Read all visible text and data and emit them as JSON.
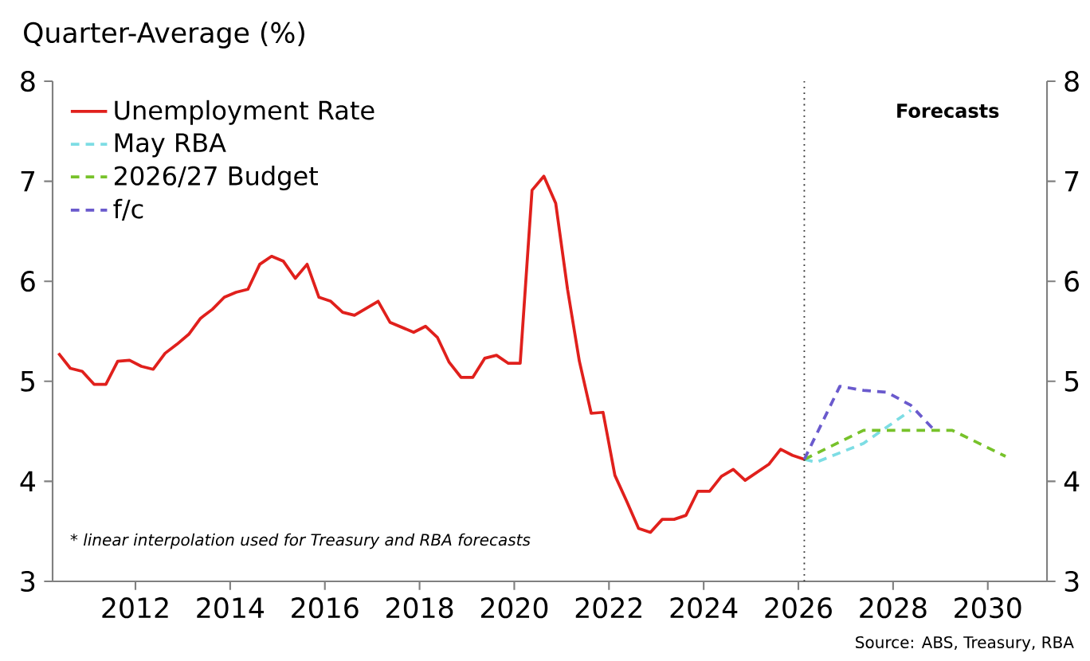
{
  "chart_data": {
    "type": "line",
    "subtitle": "Quarter-Average (%)",
    "xlim": [
      2010.25,
      2031.25
    ],
    "xticks": [
      2012,
      2014,
      2016,
      2018,
      2020,
      2022,
      2024,
      2026,
      2028,
      2030
    ],
    "ylim": [
      3,
      8
    ],
    "yticks": [
      3,
      4,
      5,
      6,
      7,
      8
    ],
    "y2lim": [
      3,
      8
    ],
    "y2ticks": [
      3,
      4,
      5,
      6,
      7,
      8
    ],
    "legend": "top left",
    "ref_lines": [
      {
        "axis": "x",
        "value": 2026.125,
        "line_style": "dotted",
        "color": "#333333"
      }
    ],
    "annotations": [
      "* linear interpolation used for Treasury and RBA forecasts",
      "Forecasts",
      "Source: ABS, Treasury, RBA"
    ],
    "series": [
      {
        "name": "Unemployment Rate",
        "color": "#e0201c",
        "line_style": "solid",
        "x": [
          2010.375,
          2010.625,
          2010.875,
          2011.125,
          2011.375,
          2011.625,
          2011.875,
          2012.125,
          2012.375,
          2012.625,
          2012.875,
          2013.125,
          2013.375,
          2013.625,
          2013.875,
          2014.125,
          2014.375,
          2014.625,
          2014.875,
          2015.125,
          2015.375,
          2015.625,
          2015.875,
          2016.125,
          2016.375,
          2016.625,
          2016.875,
          2017.125,
          2017.375,
          2017.625,
          2017.875,
          2018.125,
          2018.375,
          2018.625,
          2018.875,
          2019.125,
          2019.375,
          2019.625,
          2019.875,
          2020.125,
          2020.375,
          2020.625,
          2020.875,
          2021.125,
          2021.375,
          2021.625,
          2021.875,
          2022.125,
          2022.375,
          2022.625,
          2022.875,
          2023.125,
          2023.375,
          2023.625,
          2023.875,
          2024.125,
          2024.375,
          2024.625,
          2024.875,
          2025.125,
          2025.375,
          2025.625,
          2025.875,
          2026.125
        ],
        "values": [
          5.28,
          5.13,
          5.1,
          4.97,
          4.97,
          5.2,
          5.21,
          5.15,
          5.12,
          5.28,
          5.37,
          5.47,
          5.63,
          5.72,
          5.84,
          5.89,
          5.92,
          6.17,
          6.25,
          6.2,
          6.03,
          6.17,
          5.84,
          5.8,
          5.69,
          5.66,
          5.73,
          5.8,
          5.59,
          5.54,
          5.49,
          5.55,
          5.44,
          5.19,
          5.04,
          5.04,
          5.23,
          5.26,
          5.18,
          5.18,
          6.91,
          7.05,
          6.78,
          5.92,
          5.2,
          4.68,
          4.69,
          4.06,
          3.8,
          3.53,
          3.49,
          3.62,
          3.62,
          3.66,
          3.9,
          3.9,
          4.05,
          4.12,
          4.01,
          4.09,
          4.17,
          4.32,
          4.26,
          4.22
        ]
      },
      {
        "name": "May RBA",
        "color": "#7ddde4",
        "line_style": "dashed",
        "x": [
          2026.125,
          2026.375,
          2027.375,
          2028.375
        ],
        "values": [
          4.22,
          4.19,
          4.38,
          4.71
        ]
      },
      {
        "name": "2026/27 Budget",
        "color": "#77c22a",
        "line_style": "dashed",
        "x": [
          2026.125,
          2027.375,
          2029.25,
          2030.375
        ],
        "values": [
          4.22,
          4.51,
          4.51,
          4.25
        ]
      },
      {
        "name": "f/c",
        "color": "#6a5acd",
        "line_style": "dashed",
        "x": [
          2026.125,
          2026.875,
          2027.375,
          2027.875,
          2028.375,
          2028.875
        ],
        "values": [
          4.22,
          4.95,
          4.91,
          4.89,
          4.76,
          4.51
        ]
      }
    ]
  }
}
